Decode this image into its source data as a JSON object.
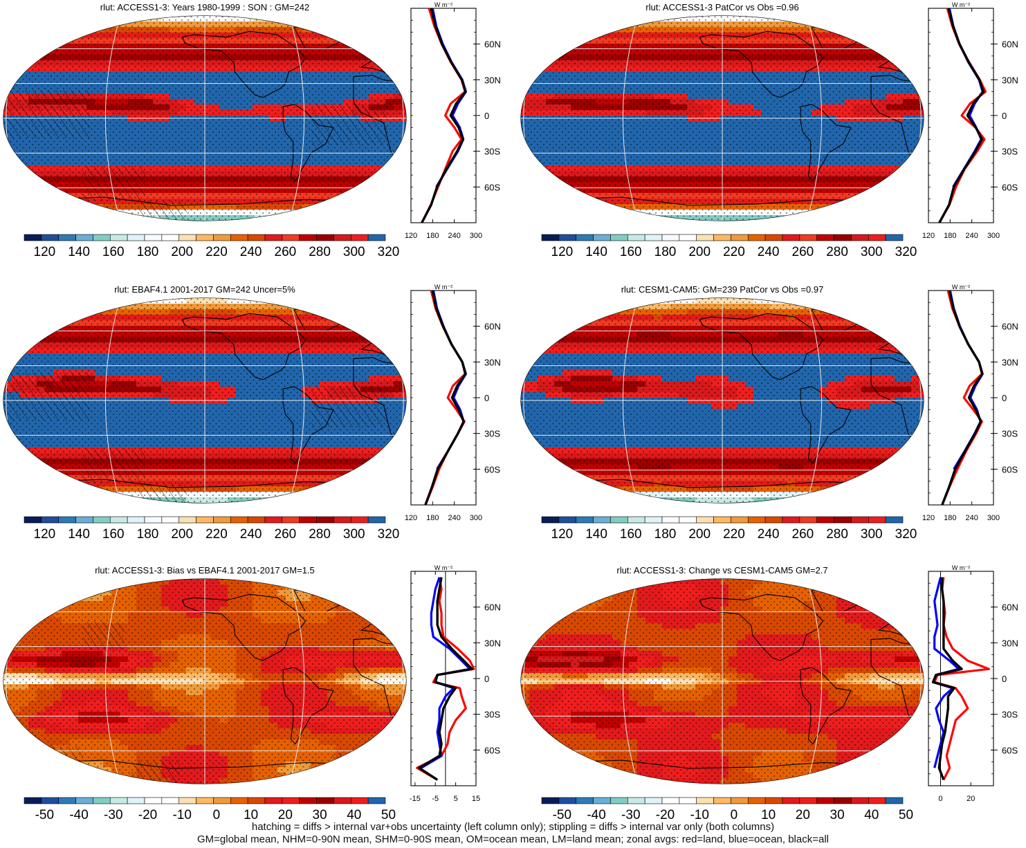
{
  "palette": [
    "#081d58",
    "#1f4e9c",
    "#2c7bb6",
    "#6aaed6",
    "#80cdc1",
    "#c7eae5",
    "#e0f3f8",
    "#f7fbff",
    "#ffffff",
    "#fde0b2",
    "#fdb863",
    "#f09a3a",
    "#e66101",
    "#d94801",
    "#e31a1c",
    "#f03b20",
    "#c00000",
    "#990000",
    "#d7191c",
    "#ef1e1e",
    "#2166ac"
  ],
  "line_colors": {
    "land": "#ff0000",
    "ocean": "#0000ff",
    "all": "#000000"
  },
  "footer": {
    "line1": "hatching = diffs > internal var+obs uncertainty (left column only); stippling = diffs > internal var only (both columns)",
    "line2": "GM=global mean, NHM=0-90N mean, SHM=0-90S mean, OM=ocean mean, LM=land mean; zonal avgs: red=land, blue=ocean, black=all"
  },
  "chart_data": [
    {
      "type": "heatmap",
      "title": "rlut: ACCESS1-3: Years 1980-1999 : SON : GM=242",
      "mode": "abs",
      "colorbar": {
        "ticks": [
          "120",
          "140",
          "160",
          "180",
          "200",
          "220",
          "240",
          "260",
          "280",
          "300",
          "320"
        ]
      },
      "zonal": {
        "unit_label": "W m⁻²",
        "x_ticks": [
          "120",
          "180",
          "240",
          "300"
        ],
        "xlim": [
          120,
          300
        ],
        "lat_ticks": [
          "60N",
          "30N",
          "0",
          "30S",
          "60S"
        ],
        "lat": [
          -90,
          -75,
          -60,
          -45,
          -30,
          -20,
          -10,
          0,
          10,
          20,
          30,
          45,
          60,
          75,
          90
        ],
        "land": [
          150,
          175,
          195,
          215,
          235,
          260,
          240,
          215,
          230,
          270,
          260,
          230,
          205,
          185,
          170
        ],
        "ocean": [
          null,
          null,
          190,
          220,
          250,
          265,
          255,
          235,
          250,
          272,
          262,
          232,
          208,
          190,
          180
        ],
        "all": [
          150,
          176,
          192,
          218,
          248,
          264,
          252,
          230,
          245,
          271,
          261,
          231,
          206,
          188,
          176
        ]
      }
    },
    {
      "type": "heatmap",
      "title": "rlut: ACCESS1-3 PatCor vs Obs =0.96",
      "mode": "abs",
      "colorbar": {
        "ticks": [
          "120",
          "140",
          "160",
          "180",
          "200",
          "220",
          "240",
          "260",
          "280",
          "300",
          "320"
        ]
      },
      "zonal": {
        "unit_label": "W m⁻²",
        "x_ticks": [
          "120",
          "180",
          "240",
          "300"
        ],
        "xlim": [
          120,
          300
        ],
        "lat_ticks": [
          "60N",
          "30N",
          "0",
          "30S",
          "60S"
        ],
        "lat": [
          -90,
          -75,
          -60,
          -45,
          -30,
          -20,
          -10,
          0,
          10,
          20,
          30,
          45,
          60,
          75,
          90
        ],
        "land": [
          150,
          178,
          196,
          220,
          255,
          275,
          250,
          212,
          235,
          278,
          262,
          232,
          205,
          186,
          172
        ],
        "ocean": [
          null,
          null,
          188,
          218,
          248,
          266,
          252,
          234,
          248,
          270,
          260,
          230,
          206,
          189,
          178
        ],
        "all": [
          150,
          177,
          190,
          219,
          250,
          268,
          251,
          228,
          244,
          272,
          261,
          231,
          206,
          188,
          176
        ]
      }
    },
    {
      "type": "heatmap",
      "title": "rlut: EBAF4.1 2001-2017 GM=242 Uncer=5%",
      "mode": "abs",
      "colorbar": {
        "ticks": [
          "120",
          "140",
          "160",
          "180",
          "200",
          "220",
          "240",
          "260",
          "280",
          "300",
          "320"
        ]
      },
      "zonal": {
        "unit_label": "W m⁻²",
        "x_ticks": [
          "120",
          "180",
          "240",
          "300"
        ],
        "xlim": [
          120,
          300
        ],
        "lat_ticks": [
          "60N",
          "30N",
          "0",
          "30S",
          "60S"
        ],
        "lat": [
          -90,
          -75,
          -60,
          -45,
          -30,
          -20,
          -10,
          0,
          10,
          20,
          30,
          45,
          60,
          75,
          90
        ],
        "land": [
          160,
          180,
          198,
          222,
          250,
          268,
          246,
          222,
          236,
          270,
          262,
          232,
          208,
          188,
          176
        ],
        "ocean": [
          null,
          null,
          192,
          222,
          250,
          266,
          256,
          238,
          252,
          272,
          262,
          232,
          210,
          192,
          182
        ],
        "all": [
          160,
          178,
          194,
          222,
          250,
          266,
          252,
          234,
          248,
          271,
          262,
          232,
          209,
          190,
          180
        ]
      }
    },
    {
      "type": "heatmap",
      "title": "rlut: CESM1-CAM5: GM=239 PatCor vs Obs =0.97",
      "mode": "abs",
      "colorbar": {
        "ticks": [
          "120",
          "140",
          "160",
          "180",
          "200",
          "220",
          "240",
          "260",
          "280",
          "300",
          "320"
        ]
      },
      "zonal": {
        "unit_label": "W m⁻²",
        "x_ticks": [
          "120",
          "180",
          "240",
          "300"
        ],
        "xlim": [
          120,
          300
        ],
        "lat_ticks": [
          "60N",
          "30N",
          "0",
          "30S",
          "60S"
        ],
        "lat": [
          -90,
          -75,
          -60,
          -45,
          -30,
          -20,
          -10,
          0,
          10,
          20,
          30,
          45,
          60,
          75,
          90
        ],
        "land": [
          158,
          178,
          200,
          224,
          252,
          268,
          244,
          218,
          234,
          268,
          260,
          230,
          206,
          186,
          174
        ],
        "ocean": [
          null,
          null,
          190,
          220,
          248,
          264,
          254,
          236,
          250,
          270,
          260,
          230,
          207,
          190,
          180
        ],
        "all": [
          158,
          177,
          194,
          221,
          249,
          265,
          251,
          232,
          246,
          269,
          260,
          230,
          206,
          189,
          178
        ]
      }
    },
    {
      "type": "heatmap",
      "title": "rlut: ACCESS1-3: Bias vs EBAF4.1 2001-2017  GM=1.5",
      "mode": "diff",
      "colorbar": {
        "ticks": [
          "-50",
          "-40",
          "-30",
          "-20",
          "-10",
          "0",
          "10",
          "20",
          "30",
          "40",
          "50"
        ]
      },
      "zonal": {
        "unit_label": "W m⁻²",
        "x_ticks": [
          "-15",
          "-5",
          "5",
          "15"
        ],
        "xlim": [
          -17,
          15
        ],
        "zero_line": 0,
        "lat_ticks": [
          "60N",
          "30N",
          "0",
          "30S",
          "60S"
        ],
        "lat": [
          -85,
          -75,
          -65,
          -55,
          -45,
          -35,
          -25,
          -15,
          -8,
          -3,
          3,
          8,
          15,
          25,
          35,
          45,
          55,
          65,
          75,
          85
        ],
        "land": [
          -4,
          -14,
          -2,
          1,
          2,
          5,
          10,
          8,
          7,
          -6,
          -4,
          14,
          12,
          6,
          -1,
          -2,
          -2,
          -3,
          -2,
          -3
        ],
        "ocean": [
          null,
          -12,
          -2,
          -3,
          -4,
          -3,
          -3,
          0,
          4,
          -5,
          -4,
          12,
          8,
          2,
          -6,
          -7,
          -7,
          -6,
          -5,
          -3
        ],
        "all": [
          -4,
          -13,
          -3,
          -2,
          -3,
          -2,
          -1,
          2,
          5,
          -5,
          -4,
          13,
          9,
          3,
          -2,
          -4,
          -4,
          -4,
          -3,
          -2
        ]
      }
    },
    {
      "type": "heatmap",
      "title": "rlut: ACCESS1-3: Change vs CESM1-CAM5 GM=2.7",
      "mode": "diff",
      "colorbar": {
        "ticks": [
          "-50",
          "-40",
          "-30",
          "-20",
          "-10",
          "0",
          "10",
          "20",
          "30",
          "40",
          "50"
        ]
      },
      "zonal": {
        "unit_label": "W m⁻²",
        "x_ticks": [
          "0",
          "20"
        ],
        "xlim": [
          -8,
          35
        ],
        "zero_line": 0,
        "lat_ticks": [
          "60N",
          "30N",
          "0",
          "30S",
          "60S"
        ],
        "lat": [
          -85,
          -75,
          -65,
          -55,
          -45,
          -35,
          -25,
          -15,
          -8,
          -3,
          3,
          8,
          15,
          25,
          35,
          45,
          55,
          65,
          75,
          85
        ],
        "land": [
          2,
          6,
          4,
          6,
          8,
          10,
          18,
          14,
          10,
          -4,
          -2,
          32,
          18,
          8,
          4,
          2,
          3,
          2,
          1,
          2
        ],
        "ocean": [
          null,
          -4,
          -2,
          0,
          2,
          -1,
          -3,
          2,
          8,
          -5,
          -3,
          12,
          6,
          -4,
          -4,
          -2,
          -3,
          -4,
          -2,
          0
        ],
        "all": [
          2,
          -1,
          0,
          1,
          3,
          4,
          5,
          5,
          9,
          -5,
          -3,
          14,
          8,
          2,
          2,
          2,
          2,
          2,
          1,
          1
        ]
      }
    }
  ]
}
